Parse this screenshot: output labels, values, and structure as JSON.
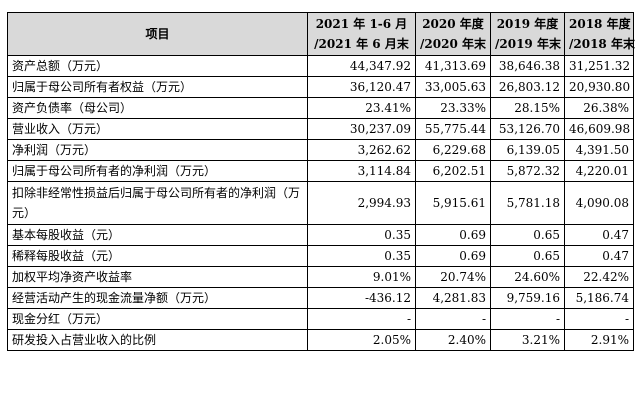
{
  "table": {
    "header": {
      "item": "项目",
      "periods": [
        {
          "line1": "2021 年 1-6 月",
          "line2": "/2021 年 6 月末"
        },
        {
          "line1": "2020 年度",
          "line2": "/2020 年末"
        },
        {
          "line1": "2019 年度",
          "line2": "/2019 年末"
        },
        {
          "line1": "2018 年度",
          "line2": "/2018 年末"
        }
      ]
    },
    "rows": [
      {
        "label": "资产总额（万元）",
        "values": [
          "44,347.92",
          "41,313.69",
          "38,646.38",
          "31,251.32"
        ]
      },
      {
        "label": "归属于母公司所有者权益（万元）",
        "values": [
          "36,120.47",
          "33,005.63",
          "26,803.12",
          "20,930.80"
        ]
      },
      {
        "label": "资产负债率（母公司）",
        "values": [
          "23.41%",
          "23.33%",
          "28.15%",
          "26.38%"
        ]
      },
      {
        "label": "营业收入（万元）",
        "values": [
          "30,237.09",
          "55,775.44",
          "53,126.70",
          "46,609.98"
        ]
      },
      {
        "label": "净利润（万元）",
        "values": [
          "3,262.62",
          "6,229.68",
          "6,139.05",
          "4,391.50"
        ]
      },
      {
        "label": "归属于母公司所有者的净利润（万元）",
        "values": [
          "3,114.84",
          "6,202.51",
          "5,872.32",
          "4,220.01"
        ]
      },
      {
        "label": "扣除非经常性损益后归属于母公司所有者的净利润（万元）",
        "values": [
          "2,994.93",
          "5,915.61",
          "5,781.18",
          "4,090.08"
        ]
      },
      {
        "label": "基本每股收益（元）",
        "values": [
          "0.35",
          "0.69",
          "0.65",
          "0.47"
        ]
      },
      {
        "label": "稀释每股收益（元）",
        "values": [
          "0.35",
          "0.69",
          "0.65",
          "0.47"
        ]
      },
      {
        "label": "加权平均净资产收益率",
        "values": [
          "9.01%",
          "20.74%",
          "24.60%",
          "22.42%"
        ]
      },
      {
        "label": "经营活动产生的现金流量净额（万元）",
        "values": [
          "-436.12",
          "4,281.83",
          "9,759.16",
          "5,186.74"
        ]
      },
      {
        "label": "现金分红（万元）",
        "values": [
          "-",
          "-",
          "-",
          "-"
        ]
      },
      {
        "label": "研发投入占营业收入的比例",
        "values": [
          "2.05%",
          "2.40%",
          "3.21%",
          "2.91%"
        ]
      }
    ]
  }
}
